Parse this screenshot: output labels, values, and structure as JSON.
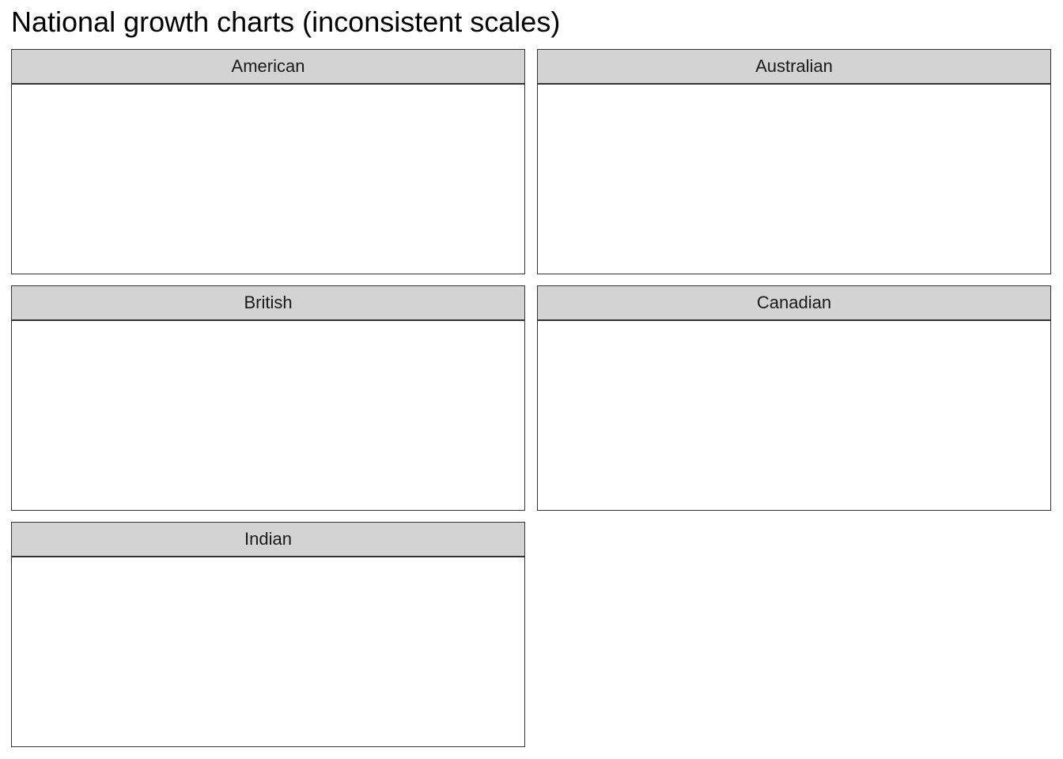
{
  "title": "National growth charts (inconsistent scales)",
  "chart_data": {
    "type": "line",
    "title": "National growth charts (inconsistent scales)",
    "facets": [
      {
        "label": "American",
        "series": []
      },
      {
        "label": "Australian",
        "series": []
      },
      {
        "label": "British",
        "series": []
      },
      {
        "label": "Canadian",
        "series": []
      },
      {
        "label": "Indian",
        "series": []
      }
    ],
    "strip_color": "#d3d3d3",
    "panel_border_color": "#333333",
    "grid": false
  }
}
